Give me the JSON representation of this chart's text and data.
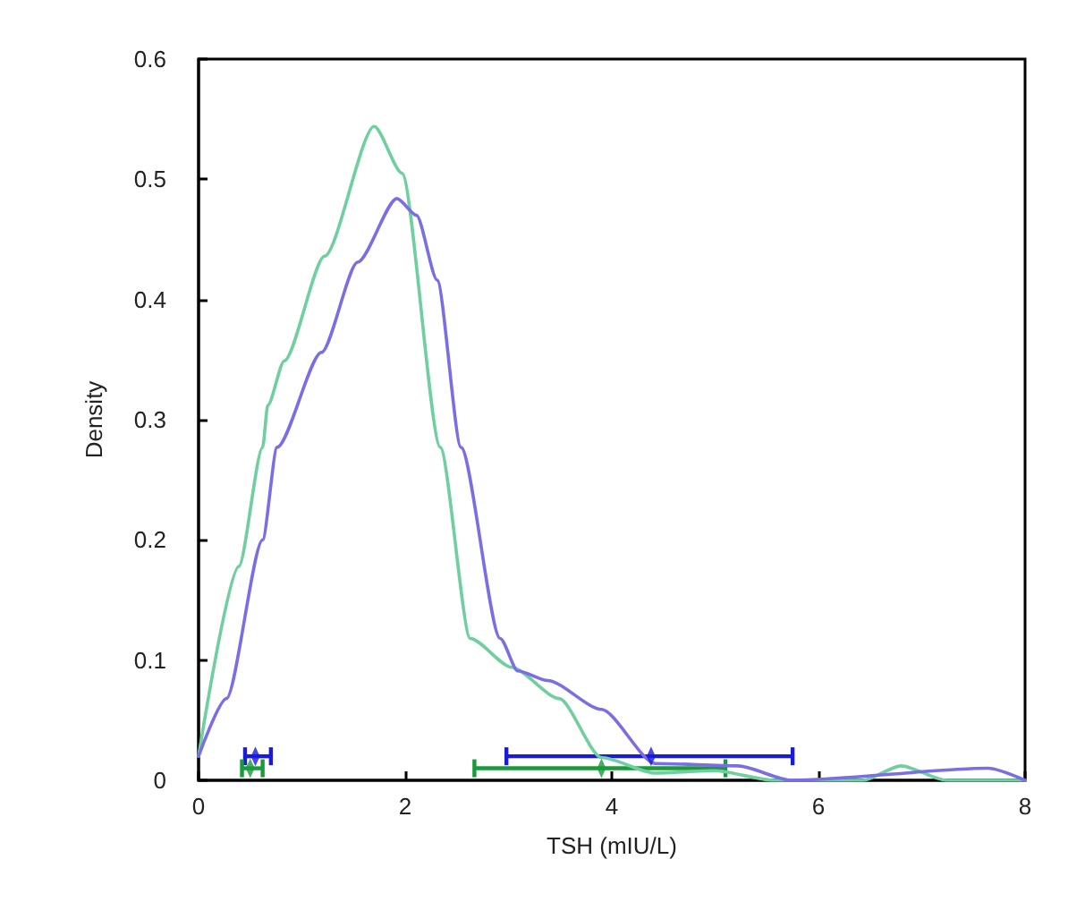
{
  "chart_data": {
    "type": "line",
    "xlabel": "TSH (mIU/L)",
    "ylabel": "Density",
    "xlim": [
      0,
      8
    ],
    "xticks": [
      0,
      2,
      4,
      6,
      8
    ],
    "ylim": [
      0,
      0.6
    ],
    "yticks": [
      0,
      0.1,
      0.2,
      0.3,
      0.4,
      0.5,
      0.6
    ],
    "grid": false,
    "marker": "none",
    "line_style": "solid",
    "series": [
      {
        "color": "#6fcf9f",
        "x": [
          0,
          0.39,
          0.62,
          0.67,
          0.83,
          1.22,
          1.7,
          1.97,
          2.34,
          2.63,
          3.03,
          3.49,
          3.9,
          4.42,
          4.99,
          5.57,
          6.43,
          6.8,
          7.24,
          8
        ],
        "values": [
          0.02,
          0.178,
          0.277,
          0.312,
          0.349,
          0.436,
          0.544,
          0.505,
          0.277,
          0.118,
          0.094,
          0.068,
          0.019,
          0.006,
          0.008,
          0,
          0,
          0.012,
          0,
          0
        ]
      },
      {
        "color": "#7a6ee6",
        "x": [
          0,
          0.27,
          0.62,
          0.76,
          1.19,
          1.54,
          1.92,
          2.11,
          2.31,
          2.54,
          2.92,
          3.09,
          3.38,
          3.9,
          4.42,
          5.22,
          5.74,
          7.64,
          8
        ],
        "values": [
          0.02,
          0.068,
          0.2,
          0.277,
          0.356,
          0.431,
          0.484,
          0.47,
          0.416,
          0.277,
          0.118,
          0.091,
          0.083,
          0.059,
          0.014,
          0.012,
          0,
          0.01,
          0
        ]
      },
      {
        "type": "scatter",
        "color": "#1a1adc",
        "marker": "diamond",
        "x": [
          0.55,
          4.38
        ],
        "values": [
          0.02,
          0.02
        ],
        "xerrors": [
          [
            0.45,
            0.7
          ],
          [
            2.98,
            5.75
          ]
        ]
      },
      {
        "type": "scatter",
        "color": "#1a9a3a",
        "marker": "diamond",
        "x": [
          0.5,
          3.9
        ],
        "values": [
          0.01,
          0.01
        ],
        "xerrors": [
          [
            0.42,
            0.62
          ],
          [
            2.67,
            5.1
          ]
        ]
      }
    ]
  }
}
